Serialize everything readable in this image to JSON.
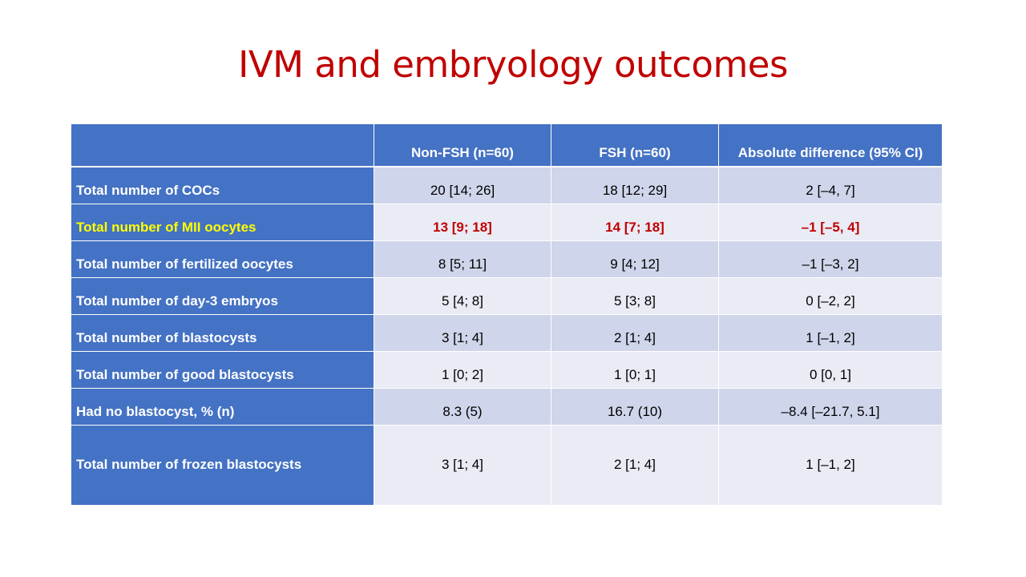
{
  "slide": {
    "title": "IVM and embryology outcomes"
  },
  "colors": {
    "title": "#C00000",
    "header_fill": "#4472C4",
    "row_band_dark": "#CFD5EA",
    "row_band_light": "#E9EBF5",
    "highlight_label": "#FFFF00",
    "highlight_values": "#C00000"
  },
  "table": {
    "headers": [
      "",
      "Non-FSH (n=60)",
      "FSH (n=60)",
      "Absolute difference (95% CI)"
    ],
    "rows": [
      {
        "label": "Total number of COCs",
        "non_fsh": "20 [14; 26]",
        "fsh": "18 [12; 29]",
        "diff": "2 [–4, 7]"
      },
      {
        "label": "Total number of MII oocytes",
        "non_fsh": "13 [9; 18]",
        "fsh": "14 [7; 18]",
        "diff": "–1 [–5, 4]",
        "highlighted": true
      },
      {
        "label": "Total number of fertilized oocytes",
        "non_fsh": "8 [5; 11]",
        "fsh": "9 [4; 12]",
        "diff": "–1 [–3, 2]"
      },
      {
        "label": "Total number of day-3 embryos",
        "non_fsh": "5 [4; 8]",
        "fsh": "5 [3; 8]",
        "diff": "0 [–2, 2]"
      },
      {
        "label": "Total number of blastocysts",
        "non_fsh": "3 [1; 4]",
        "fsh": "2 [1; 4]",
        "diff": "1 [–1, 2]"
      },
      {
        "label": "Total number of good blastocysts",
        "non_fsh": "1 [0; 2]",
        "fsh": "1 [0; 1]",
        "diff": "0 [0, 1]"
      },
      {
        "label": "Had no blastocyst, % (n)",
        "non_fsh": "8.3 (5)",
        "fsh": "16.7 (10)",
        "diff": "–8.4 [–21.7, 5.1]"
      },
      {
        "label": "Total number of frozen blastocysts",
        "non_fsh": "3 [1; 4]",
        "fsh": "2 [1; 4]",
        "diff": "1 [–1, 2]"
      }
    ]
  }
}
